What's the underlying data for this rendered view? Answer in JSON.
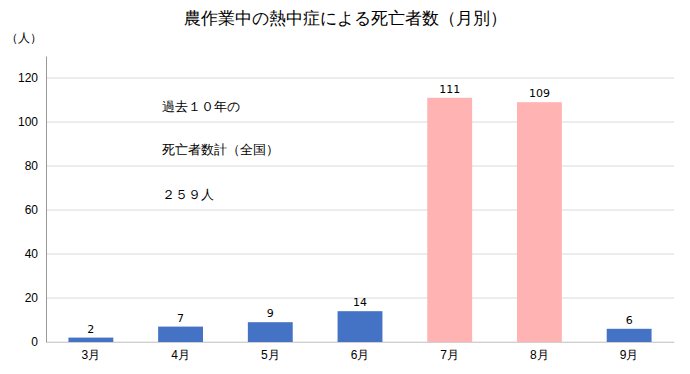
{
  "chart_data": {
    "type": "bar",
    "title": "農作業中の熱中症による死亡者数（月別）",
    "ylabel": "（人）",
    "categories": [
      "3月",
      "4月",
      "5月",
      "6月",
      "7月",
      "8月",
      "9月"
    ],
    "values": [
      2,
      7,
      9,
      14,
      111,
      109,
      6
    ],
    "colors": [
      "#4472c4",
      "#4472c4",
      "#4472c4",
      "#4472c4",
      "#ffb3b3",
      "#ffb3b3",
      "#4472c4"
    ],
    "ylim": [
      0,
      130
    ],
    "yticks": [
      0,
      20,
      40,
      60,
      80,
      100,
      120
    ],
    "grid": true,
    "data_labels": true,
    "annotations": [
      "過去１０年の",
      "死亡者数計（全国）",
      "２５９人"
    ]
  }
}
